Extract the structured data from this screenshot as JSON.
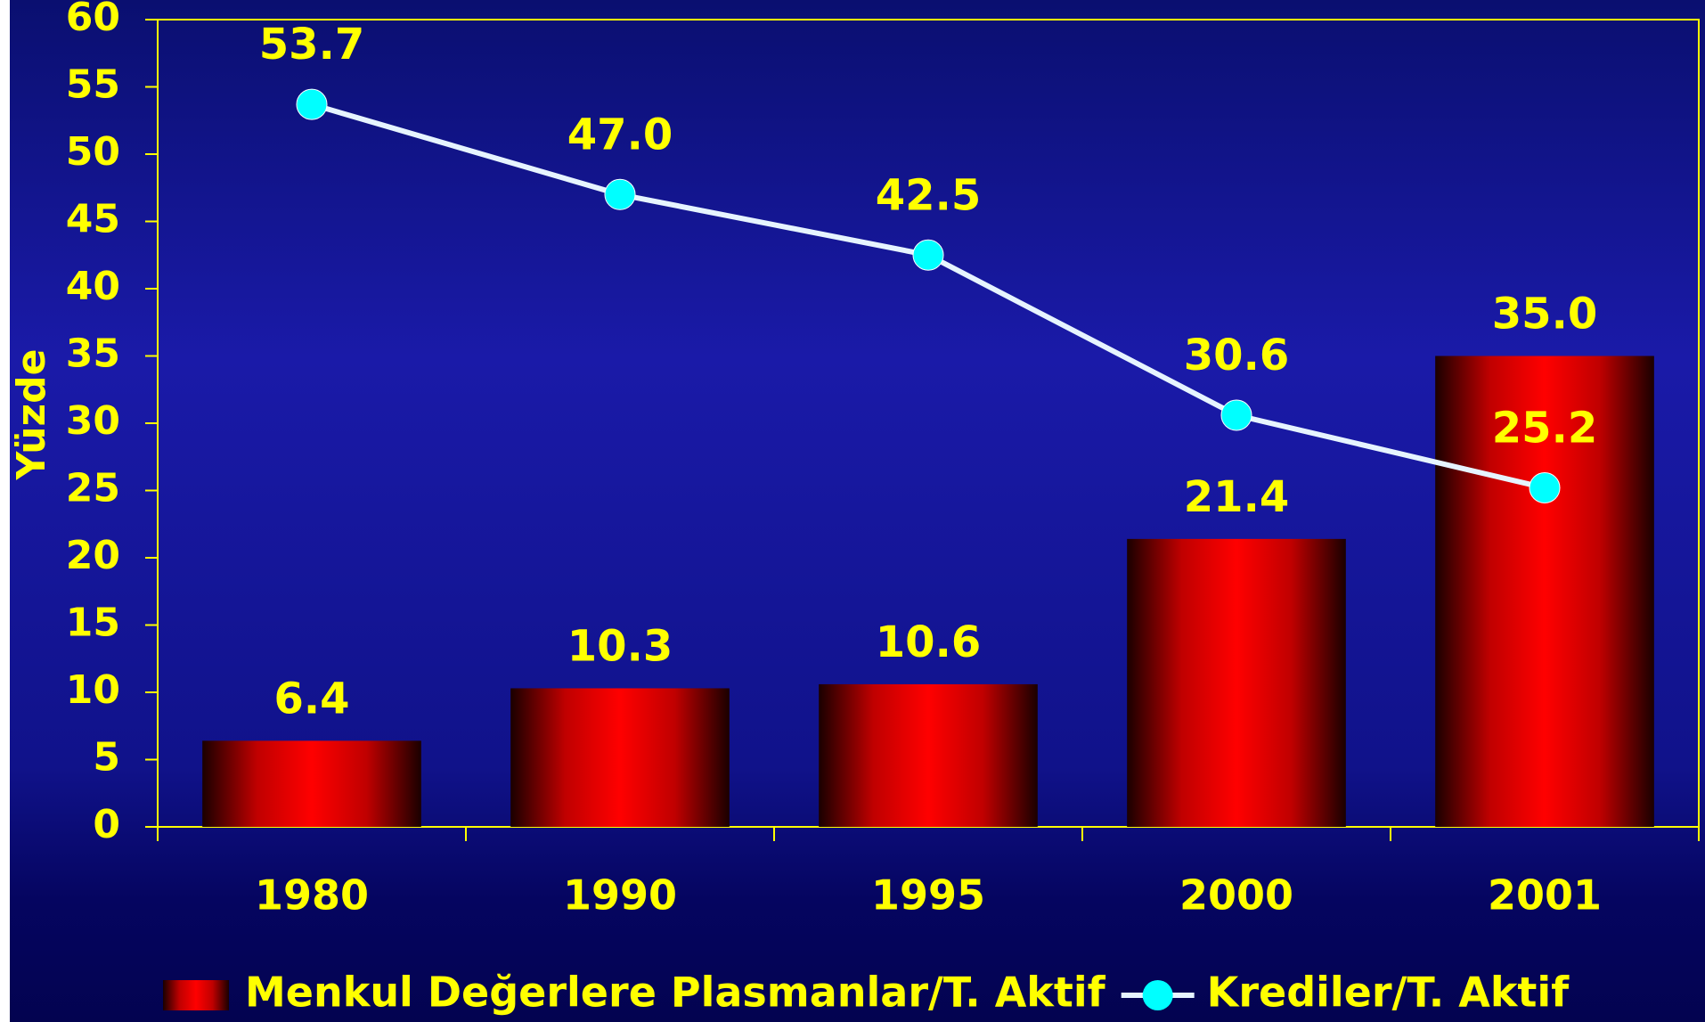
{
  "chart_data": {
    "type": "bar",
    "y_label": "Yüzde",
    "categories": [
      "1980",
      "1990",
      "1995",
      "2000",
      "2001"
    ],
    "series": [
      {
        "name": "Menkul Değerlere Plasmanlar/T. Aktif",
        "type": "bar",
        "color": "#ff0000",
        "values": [
          6.4,
          10.3,
          10.6,
          21.4,
          35.0
        ],
        "value_labels": [
          "6.4",
          "10.3",
          "10.6",
          "21.4",
          "35.0"
        ]
      },
      {
        "name": "Krediler/T. Aktif",
        "type": "line",
        "color": "#00ffff",
        "values": [
          53.7,
          47.0,
          42.5,
          30.6,
          25.2
        ],
        "value_labels": [
          "53.7",
          "47.0",
          "42.5",
          "30.6",
          "25.2"
        ]
      }
    ],
    "ylim": [
      0,
      60
    ],
    "yticks": [
      0,
      5,
      10,
      15,
      20,
      25,
      30,
      35,
      40,
      45,
      50,
      55,
      60
    ],
    "grid": false,
    "legend": "bottom"
  }
}
